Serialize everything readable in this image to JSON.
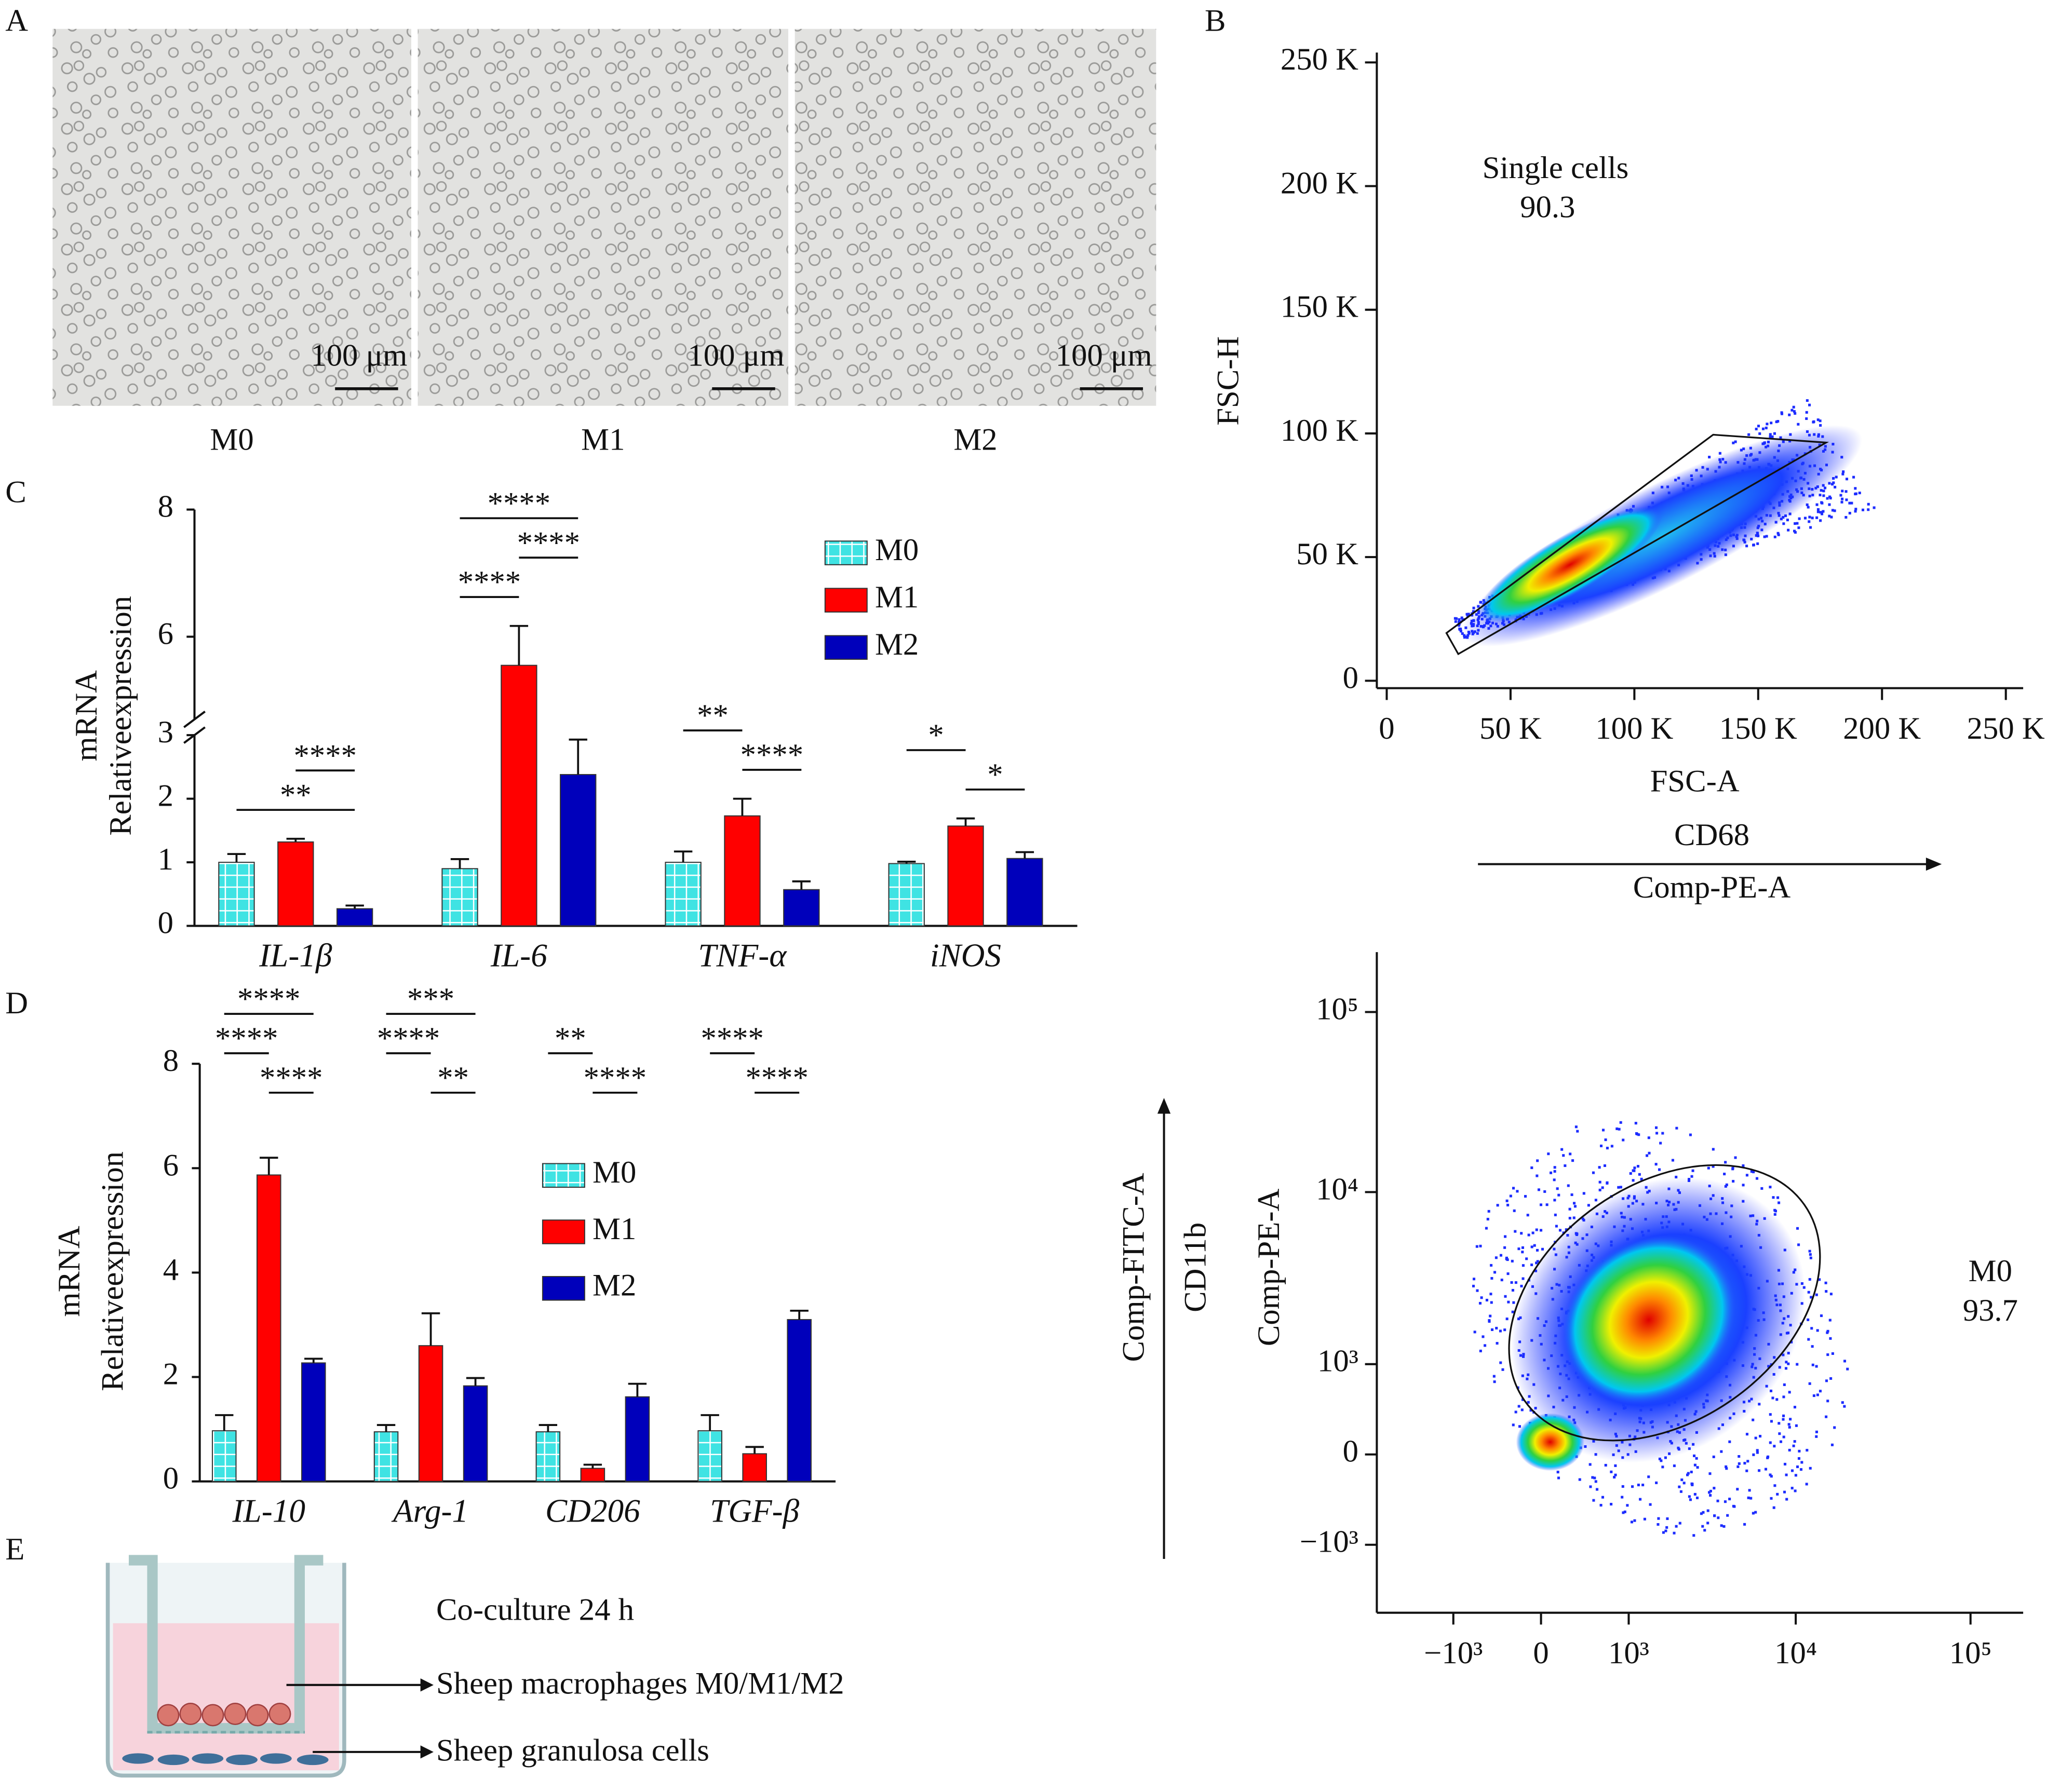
{
  "panel_labels": [
    "A",
    "B",
    "C",
    "D",
    "E"
  ],
  "micrographs": [
    {
      "label": "M0",
      "scale_bar": "100 μm"
    },
    {
      "label": "M1",
      "scale_bar": "100 μm"
    },
    {
      "label": "M2",
      "scale_bar": "100 μm"
    }
  ],
  "chart_data": [
    {
      "type": "bar",
      "categories": [
        "IL-1β",
        "IL-6",
        "TNF-α",
        "iNOS"
      ],
      "ylabel": [
        "mRNA",
        "Relativeexpression"
      ],
      "ylim": [
        0,
        8
      ],
      "yticks": [
        0,
        1,
        2,
        3,
        6,
        8
      ],
      "axis_break": [
        3,
        4.7
      ],
      "series": [
        {
          "name": "M0",
          "color": "#3fe3e3",
          "hatch": "grid",
          "values": [
            1.0,
            0.9,
            1.0,
            0.98
          ],
          "errors": [
            0.13,
            0.15,
            0.17,
            0.03
          ]
        },
        {
          "name": "M1",
          "color": "#ff0000",
          "values": [
            1.32,
            5.55,
            1.73,
            1.57
          ],
          "errors": [
            0.05,
            0.62,
            0.27,
            0.12
          ]
        },
        {
          "name": "M2",
          "color": "#0000bb",
          "values": [
            0.27,
            2.38,
            0.57,
            1.06
          ],
          "errors": [
            0.05,
            0.55,
            0.13,
            0.1
          ]
        }
      ],
      "annotations": [
        {
          "text": "**",
          "category": 0,
          "series": [
            0,
            2
          ]
        },
        {
          "text": "****",
          "category": 0,
          "series": [
            1,
            2
          ]
        },
        {
          "text": "****",
          "category": 1,
          "series": [
            0,
            1
          ]
        },
        {
          "text": "****",
          "category": 1,
          "series": [
            1,
            2
          ]
        },
        {
          "text": "****",
          "category": 1,
          "series": [
            0,
            2
          ]
        },
        {
          "text": "****",
          "category": 2,
          "series": [
            1,
            2
          ]
        },
        {
          "text": "**",
          "category": 2,
          "series": [
            0,
            1
          ]
        },
        {
          "text": "*",
          "category": 3,
          "series": [
            1,
            2
          ]
        },
        {
          "text": "*",
          "category": 3,
          "series": [
            0,
            1
          ]
        }
      ]
    },
    {
      "type": "bar",
      "categories": [
        "IL-10",
        "Arg-1",
        "CD206",
        "TGF-β"
      ],
      "ylabel": [
        "mRNA",
        "Relativeexpression"
      ],
      "ylim": [
        0,
        8
      ],
      "yticks": [
        0,
        2,
        4,
        6,
        8
      ],
      "series": [
        {
          "name": "M0",
          "color": "#3fe3e3",
          "hatch": "grid",
          "values": [
            0.97,
            0.95,
            0.95,
            0.97
          ],
          "errors": [
            0.3,
            0.13,
            0.13,
            0.3
          ]
        },
        {
          "name": "M1",
          "color": "#ff0000",
          "values": [
            5.87,
            2.6,
            0.25,
            0.53
          ],
          "errors": [
            0.33,
            0.62,
            0.07,
            0.13
          ]
        },
        {
          "name": "M2",
          "color": "#0000bb",
          "values": [
            2.27,
            1.83,
            1.62,
            3.1
          ],
          "errors": [
            0.08,
            0.15,
            0.25,
            0.17
          ]
        }
      ],
      "annotations": [
        {
          "text": "****",
          "category": 0,
          "series": [
            1,
            2
          ]
        },
        {
          "text": "****",
          "category": 0,
          "series": [
            0,
            1
          ]
        },
        {
          "text": "****",
          "category": 0,
          "series": [
            0,
            2
          ]
        },
        {
          "text": "**",
          "category": 1,
          "series": [
            1,
            2
          ]
        },
        {
          "text": "****",
          "category": 1,
          "series": [
            0,
            1
          ]
        },
        {
          "text": "***",
          "category": 1,
          "series": [
            0,
            2
          ]
        },
        {
          "text": "****",
          "category": 2,
          "series": [
            1,
            2
          ]
        },
        {
          "text": "**",
          "category": 2,
          "series": [
            0,
            1
          ]
        },
        {
          "text": "****",
          "category": 3,
          "series": [
            1,
            2
          ]
        },
        {
          "text": "****",
          "category": 3,
          "series": [
            0,
            1
          ]
        }
      ]
    },
    {
      "type": "flow",
      "xlabel": "FSC-A",
      "ylabel": "FSC-H",
      "xlim": [
        -4000,
        257000
      ],
      "ylim": [
        -3000,
        254000
      ],
      "xticks": [
        0,
        {
          "value": 50000,
          "label": "50 K"
        },
        {
          "value": 100000,
          "label": "100 K"
        },
        {
          "value": 150000,
          "label": "150 K"
        },
        {
          "value": 200000,
          "label": "200 K"
        },
        {
          "value": 250000,
          "label": "250 K"
        }
      ],
      "yticks": [
        0,
        {
          "value": 50000,
          "label": "50 K"
        },
        {
          "value": 100000,
          "label": "100 K"
        },
        {
          "value": 150000,
          "label": "150 K"
        },
        {
          "value": 200000,
          "label": "200 K"
        },
        {
          "value": 250000,
          "label": "250 K"
        }
      ],
      "gate": {
        "name": "Single cells",
        "value": 90.3
      }
    },
    {
      "type": "flow",
      "scale": "asinh",
      "x_marker": "CD68",
      "x_channel": "Comp-PE-A",
      "y_marker": "CD11b",
      "y_channel": "Comp-FITC-A",
      "ylabel": "Comp-PE-A",
      "xlim": [
        -3000,
        200000
      ],
      "ylim": [
        -2600,
        215000
      ],
      "xticks": [
        {
          "value": -1000,
          "label": "−10³"
        },
        0,
        {
          "value": 1000,
          "label": "10³"
        },
        {
          "value": 10000,
          "label": "10⁴"
        },
        {
          "value": 100000,
          "label": "10⁵"
        }
      ],
      "yticks": [
        {
          "value": -1000,
          "label": "−10³"
        },
        0,
        {
          "value": 1000,
          "label": "10³"
        },
        {
          "value": 10000,
          "label": "10⁴"
        },
        {
          "value": 100000,
          "label": "10⁵"
        }
      ],
      "gate": {
        "name": "M0",
        "value": 93.7
      }
    }
  ],
  "coculture": {
    "title": "Co-culture 24 h",
    "labels": [
      "Sheep macrophages M0/M1/M2",
      "Sheep granulosa cells"
    ]
  }
}
